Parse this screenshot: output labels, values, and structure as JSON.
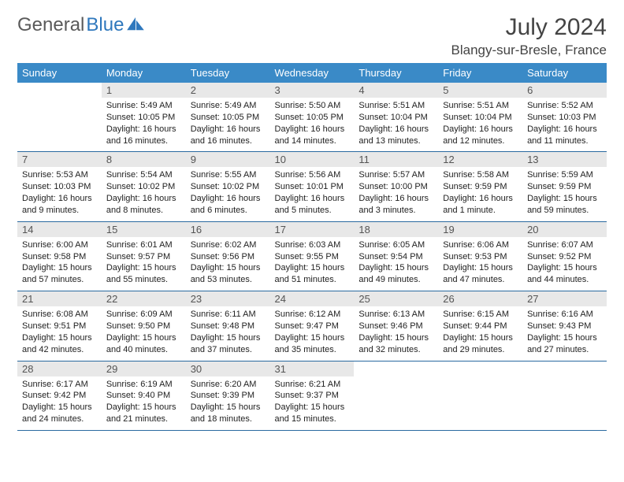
{
  "brand": {
    "part1": "General",
    "part2": "Blue"
  },
  "title": "July 2024",
  "location": "Blangy-sur-Bresle, France",
  "colors": {
    "header_bg": "#3a8ac7",
    "header_text": "#ffffff",
    "daynum_bg": "#e8e8e8",
    "border": "#2a6aa0",
    "brand_gray": "#5a5a5a",
    "brand_blue": "#2f78bd"
  },
  "weekdays": [
    "Sunday",
    "Monday",
    "Tuesday",
    "Wednesday",
    "Thursday",
    "Friday",
    "Saturday"
  ],
  "calendar": {
    "start_weekday": 1,
    "days": [
      {
        "n": 1,
        "sr": "5:49 AM",
        "ss": "10:05 PM",
        "dl": "16 hours and 16 minutes."
      },
      {
        "n": 2,
        "sr": "5:49 AM",
        "ss": "10:05 PM",
        "dl": "16 hours and 16 minutes."
      },
      {
        "n": 3,
        "sr": "5:50 AM",
        "ss": "10:05 PM",
        "dl": "16 hours and 14 minutes."
      },
      {
        "n": 4,
        "sr": "5:51 AM",
        "ss": "10:04 PM",
        "dl": "16 hours and 13 minutes."
      },
      {
        "n": 5,
        "sr": "5:51 AM",
        "ss": "10:04 PM",
        "dl": "16 hours and 12 minutes."
      },
      {
        "n": 6,
        "sr": "5:52 AM",
        "ss": "10:03 PM",
        "dl": "16 hours and 11 minutes."
      },
      {
        "n": 7,
        "sr": "5:53 AM",
        "ss": "10:03 PM",
        "dl": "16 hours and 9 minutes."
      },
      {
        "n": 8,
        "sr": "5:54 AM",
        "ss": "10:02 PM",
        "dl": "16 hours and 8 minutes."
      },
      {
        "n": 9,
        "sr": "5:55 AM",
        "ss": "10:02 PM",
        "dl": "16 hours and 6 minutes."
      },
      {
        "n": 10,
        "sr": "5:56 AM",
        "ss": "10:01 PM",
        "dl": "16 hours and 5 minutes."
      },
      {
        "n": 11,
        "sr": "5:57 AM",
        "ss": "10:00 PM",
        "dl": "16 hours and 3 minutes."
      },
      {
        "n": 12,
        "sr": "5:58 AM",
        "ss": "9:59 PM",
        "dl": "16 hours and 1 minute."
      },
      {
        "n": 13,
        "sr": "5:59 AM",
        "ss": "9:59 PM",
        "dl": "15 hours and 59 minutes."
      },
      {
        "n": 14,
        "sr": "6:00 AM",
        "ss": "9:58 PM",
        "dl": "15 hours and 57 minutes."
      },
      {
        "n": 15,
        "sr": "6:01 AM",
        "ss": "9:57 PM",
        "dl": "15 hours and 55 minutes."
      },
      {
        "n": 16,
        "sr": "6:02 AM",
        "ss": "9:56 PM",
        "dl": "15 hours and 53 minutes."
      },
      {
        "n": 17,
        "sr": "6:03 AM",
        "ss": "9:55 PM",
        "dl": "15 hours and 51 minutes."
      },
      {
        "n": 18,
        "sr": "6:05 AM",
        "ss": "9:54 PM",
        "dl": "15 hours and 49 minutes."
      },
      {
        "n": 19,
        "sr": "6:06 AM",
        "ss": "9:53 PM",
        "dl": "15 hours and 47 minutes."
      },
      {
        "n": 20,
        "sr": "6:07 AM",
        "ss": "9:52 PM",
        "dl": "15 hours and 44 minutes."
      },
      {
        "n": 21,
        "sr": "6:08 AM",
        "ss": "9:51 PM",
        "dl": "15 hours and 42 minutes."
      },
      {
        "n": 22,
        "sr": "6:09 AM",
        "ss": "9:50 PM",
        "dl": "15 hours and 40 minutes."
      },
      {
        "n": 23,
        "sr": "6:11 AM",
        "ss": "9:48 PM",
        "dl": "15 hours and 37 minutes."
      },
      {
        "n": 24,
        "sr": "6:12 AM",
        "ss": "9:47 PM",
        "dl": "15 hours and 35 minutes."
      },
      {
        "n": 25,
        "sr": "6:13 AM",
        "ss": "9:46 PM",
        "dl": "15 hours and 32 minutes."
      },
      {
        "n": 26,
        "sr": "6:15 AM",
        "ss": "9:44 PM",
        "dl": "15 hours and 29 minutes."
      },
      {
        "n": 27,
        "sr": "6:16 AM",
        "ss": "9:43 PM",
        "dl": "15 hours and 27 minutes."
      },
      {
        "n": 28,
        "sr": "6:17 AM",
        "ss": "9:42 PM",
        "dl": "15 hours and 24 minutes."
      },
      {
        "n": 29,
        "sr": "6:19 AM",
        "ss": "9:40 PM",
        "dl": "15 hours and 21 minutes."
      },
      {
        "n": 30,
        "sr": "6:20 AM",
        "ss": "9:39 PM",
        "dl": "15 hours and 18 minutes."
      },
      {
        "n": 31,
        "sr": "6:21 AM",
        "ss": "9:37 PM",
        "dl": "15 hours and 15 minutes."
      }
    ]
  },
  "labels": {
    "sunrise": "Sunrise:",
    "sunset": "Sunset:",
    "daylight": "Daylight:"
  }
}
